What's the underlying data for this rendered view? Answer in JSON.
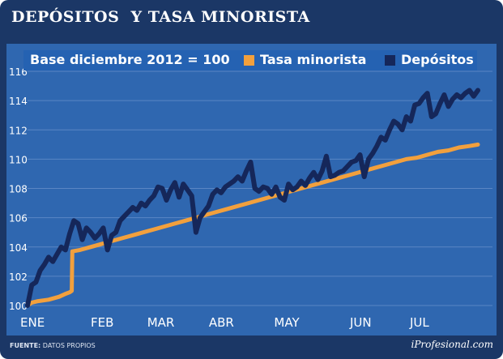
{
  "chart_data": {
    "type": "line",
    "title": "DEPÓSITOS  Y TASA MINORISTA",
    "subtitle": "Base diciembre 2012 = 100",
    "xlabel": "",
    "ylabel": "",
    "ylim": [
      100,
      117
    ],
    "y_ticks": [
      100,
      102,
      104,
      106,
      108,
      110,
      112,
      114,
      116
    ],
    "x_ticks": [
      "ENE",
      "FEB",
      "MAR",
      "ABR",
      "MAY",
      "JUN",
      "JUL"
    ],
    "grid": true,
    "legend": "top",
    "colors": {
      "background": "#1b3766",
      "plot": "#2f67b0",
      "tasa": "#f2a03d",
      "depositos": "#15275a"
    },
    "series": [
      {
        "name": "Tasa minorista",
        "x": [
          0,
          2,
          5,
          10,
          15,
          18,
          20,
          21,
          21.3,
          25,
          30,
          35,
          40,
          45,
          50,
          55,
          60,
          65,
          70,
          75,
          80,
          85,
          90,
          95,
          100,
          105,
          110,
          115,
          120,
          125,
          130,
          135,
          140,
          145,
          150,
          155,
          160,
          165,
          170,
          175,
          180,
          185,
          190,
          195,
          200,
          205,
          210,
          214
        ],
        "y": [
          100.0,
          100.2,
          100.3,
          100.4,
          100.6,
          100.8,
          100.9,
          101.0,
          103.7,
          103.8,
          104.0,
          104.2,
          104.4,
          104.6,
          104.8,
          105.0,
          105.2,
          105.4,
          105.6,
          105.8,
          106.0,
          106.2,
          106.4,
          106.6,
          106.8,
          107.0,
          107.2,
          107.4,
          107.6,
          107.8,
          108.0,
          108.2,
          108.4,
          108.6,
          108.8,
          109.0,
          109.2,
          109.4,
          109.6,
          109.8,
          110.0,
          110.1,
          110.3,
          110.5,
          110.6,
          110.8,
          110.9,
          111.0
        ]
      },
      {
        "name": "Depósitos",
        "x": [
          0,
          2,
          4,
          6,
          8,
          10,
          12,
          14,
          16,
          18,
          20,
          22,
          24,
          26,
          28,
          30,
          32,
          34,
          36,
          38,
          40,
          42,
          44,
          46,
          48,
          50,
          52,
          54,
          56,
          58,
          60,
          62,
          64,
          66,
          68,
          70,
          72,
          74,
          76,
          78,
          80,
          82,
          84,
          86,
          88,
          90,
          92,
          94,
          96,
          98,
          100,
          102,
          104,
          106,
          108,
          110,
          112,
          114,
          116,
          118,
          120,
          122,
          124,
          126,
          128,
          130,
          132,
          134,
          136,
          138,
          140,
          142,
          144,
          146,
          148,
          150,
          152,
          154,
          156,
          158,
          160,
          162,
          164,
          166,
          168,
          170,
          172,
          174,
          176,
          178,
          180,
          182,
          184,
          186,
          188,
          190,
          192,
          194,
          196,
          198,
          200,
          202,
          204,
          206,
          208,
          210,
          212,
          214
        ],
        "y": [
          100.0,
          101.4,
          101.6,
          102.4,
          102.8,
          103.3,
          103.0,
          103.5,
          104.0,
          103.8,
          104.9,
          105.8,
          105.6,
          104.5,
          105.3,
          105.0,
          104.6,
          104.9,
          105.3,
          103.8,
          104.8,
          105.0,
          105.8,
          106.1,
          106.4,
          106.7,
          106.5,
          107.0,
          106.8,
          107.2,
          107.5,
          108.1,
          108.0,
          107.2,
          107.9,
          108.4,
          107.4,
          108.3,
          107.9,
          107.5,
          105.0,
          106.0,
          106.4,
          106.8,
          107.6,
          107.9,
          107.7,
          108.1,
          108.3,
          108.5,
          108.8,
          108.5,
          109.2,
          109.8,
          108.0,
          107.8,
          108.1,
          108.0,
          107.6,
          108.1,
          107.4,
          107.2,
          108.3,
          107.9,
          108.1,
          108.5,
          108.2,
          108.7,
          109.1,
          108.6,
          109.2,
          110.2,
          108.8,
          108.9,
          109.1,
          109.2,
          109.5,
          109.8,
          109.9,
          110.3,
          108.8,
          110.0,
          110.4,
          110.9,
          111.5,
          111.3,
          112.0,
          112.6,
          112.4,
          112.0,
          112.9,
          112.6,
          113.7,
          113.8,
          114.2,
          114.5,
          112.9,
          113.1,
          113.8,
          114.4,
          113.6,
          114.1,
          114.4,
          114.2,
          114.5,
          114.7,
          114.3,
          114.7
        ]
      }
    ]
  },
  "legend": {
    "base_text": "Base diciembre 2012 = 100",
    "tasa_label": "Tasa minorista",
    "depositos_label": "Depósitos"
  },
  "footer": {
    "source_label": "FUENTE:",
    "source_value": "DATOS PROPIOS",
    "brand": "iProfesional.com"
  }
}
